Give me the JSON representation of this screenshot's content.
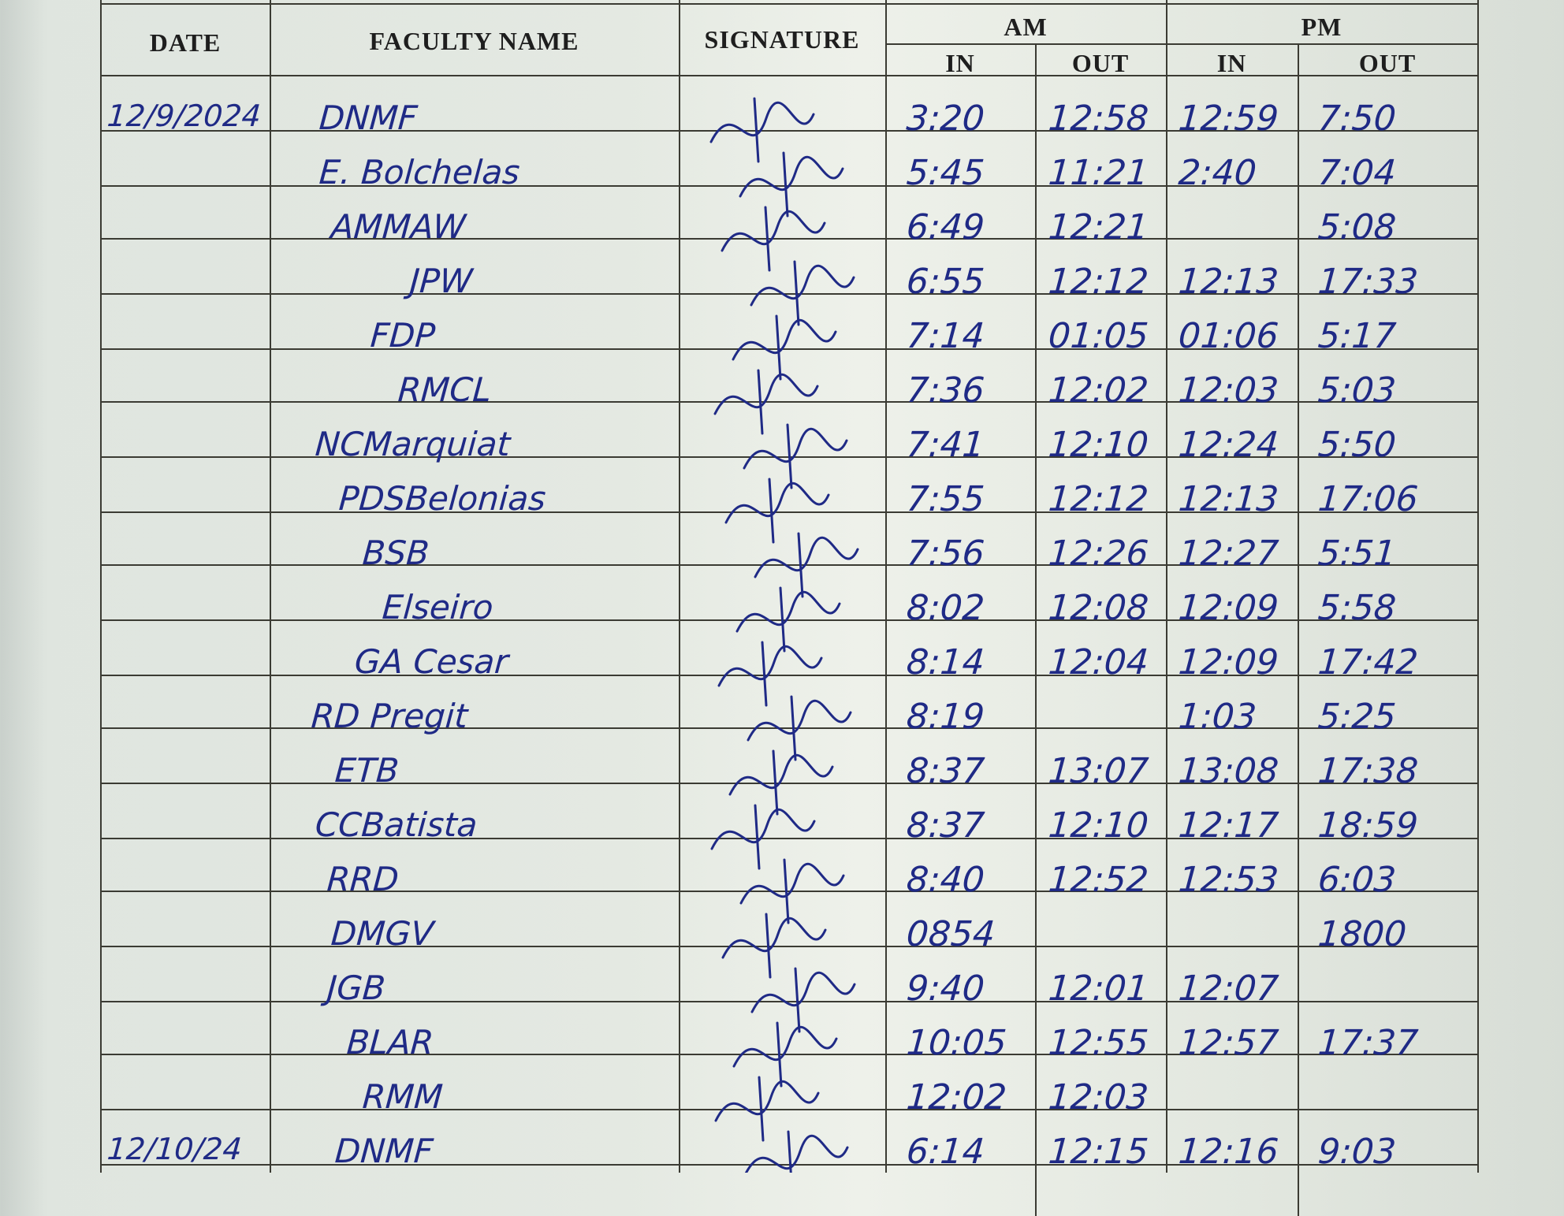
{
  "headers": {
    "date": "DATE",
    "faculty_name": "FACULTY NAME",
    "signature": "SIGNATURE",
    "am": "AM",
    "pm": "PM",
    "am_in": "IN",
    "am_out": "OUT",
    "pm_in": "IN",
    "pm_out": "OUT"
  },
  "ink_color": "#1f2a86",
  "entries": [
    {
      "date": "12/9/2024",
      "name": "DNMF",
      "am_in": "3:20",
      "am_out": "12:58",
      "pm_in": "12:59",
      "pm_out": "7:50"
    },
    {
      "date": "",
      "name": "E. Bolchelas",
      "am_in": "5:45",
      "am_out": "11:21",
      "pm_in": "2:40",
      "pm_out": "7:04"
    },
    {
      "date": "",
      "name": "AMMAW",
      "am_in": "6:49",
      "am_out": "12:21",
      "pm_in": "",
      "pm_out": "5:08"
    },
    {
      "date": "",
      "name": "JPW",
      "am_in": "6:55",
      "am_out": "12:12",
      "pm_in": "12:13",
      "pm_out": "17:33"
    },
    {
      "date": "",
      "name": "FDP",
      "am_in": "7:14",
      "am_out": "01:05",
      "pm_in": "01:06",
      "pm_out": "5:17"
    },
    {
      "date": "",
      "name": "RMCL",
      "am_in": "7:36",
      "am_out": "12:02",
      "pm_in": "12:03",
      "pm_out": "5:03"
    },
    {
      "date": "",
      "name": "NCMarquiat",
      "am_in": "7:41",
      "am_out": "12:10",
      "pm_in": "12:24",
      "pm_out": "5:50"
    },
    {
      "date": "",
      "name": "PDSBelonias",
      "am_in": "7:55",
      "am_out": "12:12",
      "pm_in": "12:13",
      "pm_out": "17:06"
    },
    {
      "date": "",
      "name": "BSB",
      "am_in": "7:56",
      "am_out": "12:26",
      "pm_in": "12:27",
      "pm_out": "5:51"
    },
    {
      "date": "",
      "name": "Elseiro",
      "am_in": "8:02",
      "am_out": "12:08",
      "pm_in": "12:09",
      "pm_out": "5:58"
    },
    {
      "date": "",
      "name": "GA Cesar",
      "am_in": "8:14",
      "am_out": "12:04",
      "pm_in": "12:09",
      "pm_out": "17:42"
    },
    {
      "date": "",
      "name": "RD Pregit",
      "am_in": "8:19",
      "am_out": "",
      "pm_in": "1:03",
      "pm_out": "5:25"
    },
    {
      "date": "",
      "name": "ETB",
      "am_in": "8:37",
      "am_out": "13:07",
      "pm_in": "13:08",
      "pm_out": "17:38"
    },
    {
      "date": "",
      "name": "CCBatista",
      "am_in": "8:37",
      "am_out": "12:10",
      "pm_in": "12:17",
      "pm_out": "18:59"
    },
    {
      "date": "",
      "name": "RRD",
      "am_in": "8:40",
      "am_out": "12:52",
      "pm_in": "12:53",
      "pm_out": "6:03"
    },
    {
      "date": "",
      "name": "DMGV",
      "am_in": "0854",
      "am_out": "",
      "pm_in": "",
      "pm_out": "1800"
    },
    {
      "date": "",
      "name": "JGB",
      "am_in": "9:40",
      "am_out": "12:01",
      "pm_in": "12:07",
      "pm_out": ""
    },
    {
      "date": "",
      "name": "BLAR",
      "am_in": "10:05",
      "am_out": "12:55",
      "pm_in": "12:57",
      "pm_out": "17:37"
    },
    {
      "date": "",
      "name": "RMM",
      "am_in": "12:02",
      "am_out": "12:03",
      "pm_in": "",
      "pm_out": ""
    },
    {
      "date": "12/10/24",
      "name": "DNMF",
      "am_in": "6:14",
      "am_out": "12:15",
      "pm_in": "12:16",
      "pm_out": "9:03"
    }
  ]
}
